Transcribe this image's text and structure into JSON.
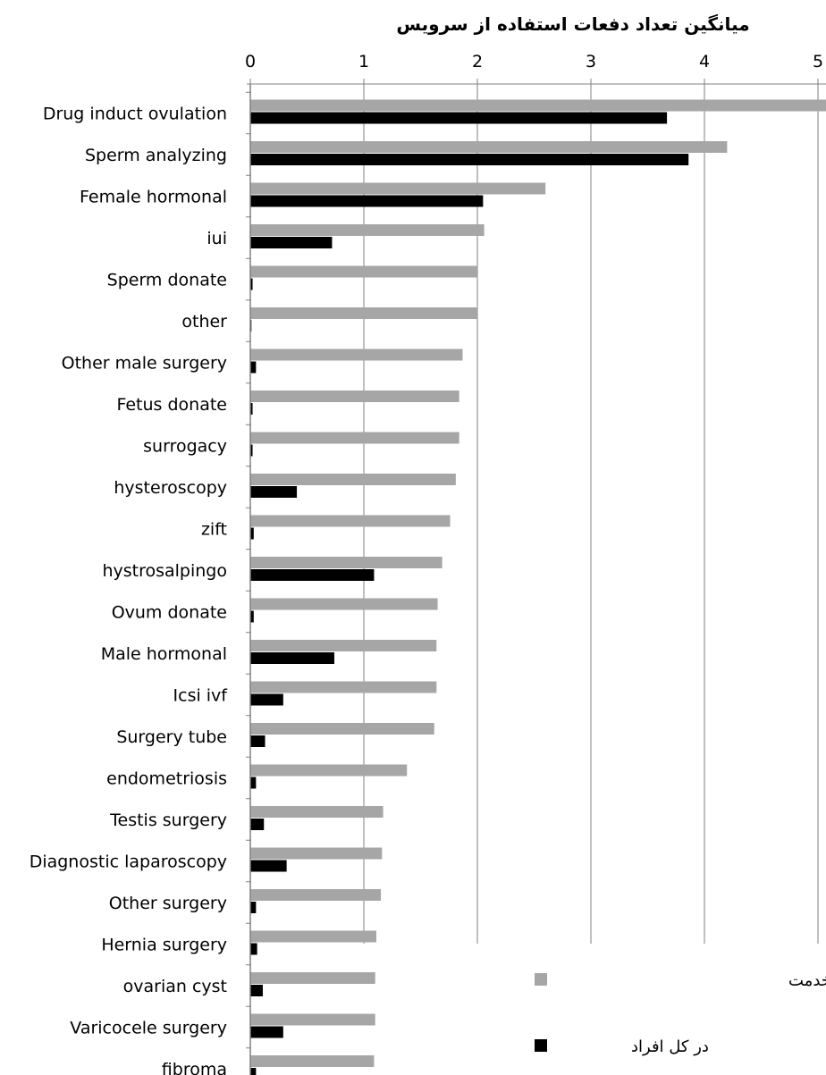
{
  "chart_data": {
    "type": "bar",
    "orientation": "horizontal",
    "title": "میانگین تعداد دفعات استفاده از سرویس",
    "xlim": [
      0,
      5
    ],
    "x_ticks": [
      "0",
      "1",
      "2",
      "3",
      "4",
      "5"
    ],
    "grid": "vertical",
    "legend_position": "bottom-right",
    "categories": [
      "Drug induct ovulation",
      "Sperm analyzing",
      "Female hormonal",
      "iui",
      "Sperm donate",
      "other",
      "Other male surgery",
      "Fetus donate",
      "surrogacy",
      "hysteroscopy",
      "zift",
      "hystrosalpingo",
      "Ovum donate",
      "Male hormonal",
      "Icsi ivf",
      "Surgery tube",
      "endometriosis",
      "Testis surgery",
      "Diagnostic laparoscopy",
      "Other surgery",
      "Hernia surgery",
      "ovarian cyst",
      "Varicocele surgery",
      "fibroma"
    ],
    "series": [
      {
        "name": "در استفاده کنندگان از خدمت",
        "color": "#a6a6a6",
        "values": [
          5.1,
          4.2,
          2.6,
          2.06,
          2.0,
          2.0,
          1.87,
          1.84,
          1.84,
          1.81,
          1.76,
          1.69,
          1.65,
          1.64,
          1.64,
          1.62,
          1.38,
          1.17,
          1.16,
          1.15,
          1.11,
          1.1,
          1.1,
          1.09
        ]
      },
      {
        "name": "در کل افراد",
        "color": "#000000",
        "values": [
          3.67,
          3.86,
          2.05,
          0.72,
          0.02,
          0.01,
          0.05,
          0.02,
          0.02,
          0.41,
          0.03,
          1.09,
          0.03,
          0.74,
          0.29,
          0.13,
          0.05,
          0.12,
          0.32,
          0.05,
          0.06,
          0.11,
          0.29,
          0.05
        ]
      }
    ]
  }
}
